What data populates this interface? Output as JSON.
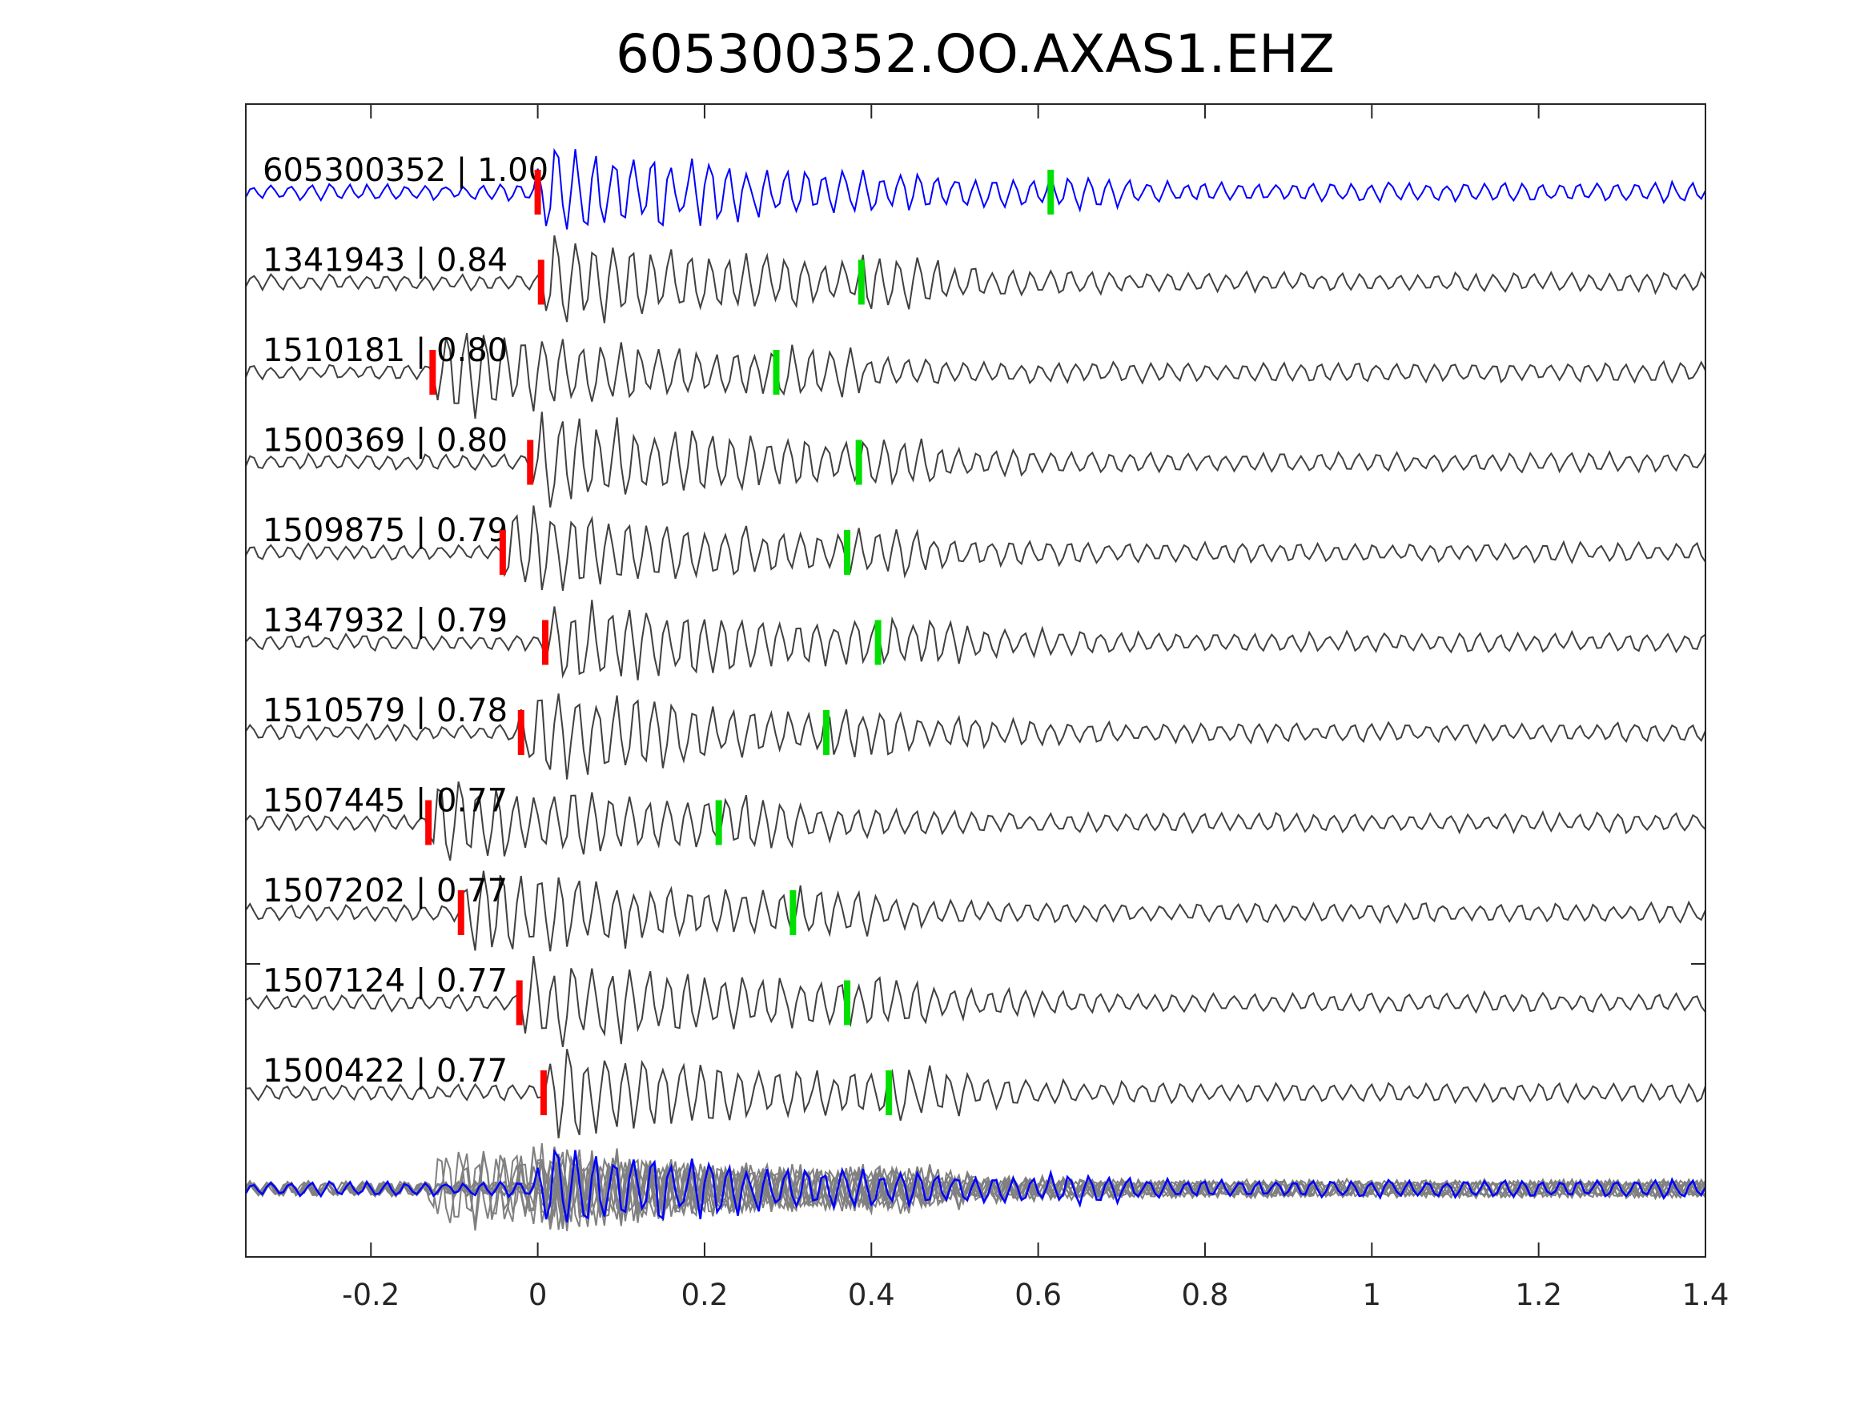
{
  "chart_data": {
    "type": "line",
    "title": "605300352.OO.AXAS1.EHZ",
    "xlabel": "",
    "ylabel": "",
    "xlim": [
      -0.35,
      1.4
    ],
    "xticks": [
      -0.2,
      0,
      0.2,
      0.4,
      0.6,
      0.8,
      1,
      1.2,
      1.4
    ],
    "xtick_labels": [
      "-0.2",
      "0",
      "0.2",
      "0.4",
      "0.6",
      "0.8",
      "1",
      "1.2",
      "1.4"
    ],
    "grid": false,
    "colors": {
      "template": "#0000ff",
      "trace": "#404040",
      "stack": "#808080",
      "p_pick": "#ff0000",
      "s_pick": "#00e000",
      "axis": "#262626"
    },
    "series": [
      {
        "id": "605300352",
        "cc": "1.00",
        "label": "605300352 | 1.00",
        "p_pick": 0.0,
        "s_pick": 0.615,
        "template": true
      },
      {
        "id": "1341943",
        "cc": "0.84",
        "label": "1341943 | 0.84",
        "p_pick": 0.004,
        "s_pick": 0.388
      },
      {
        "id": "1510181",
        "cc": "0.80",
        "label": "1510181 | 0.80",
        "p_pick": -0.126,
        "s_pick": 0.286
      },
      {
        "id": "1500369",
        "cc": "0.80",
        "label": "1500369 | 0.80",
        "p_pick": -0.009,
        "s_pick": 0.385
      },
      {
        "id": "1509875",
        "cc": "0.79",
        "label": "1509875 | 0.79",
        "p_pick": -0.042,
        "s_pick": 0.371
      },
      {
        "id": "1347932",
        "cc": "0.79",
        "label": "1347932 | 0.79",
        "p_pick": 0.009,
        "s_pick": 0.408
      },
      {
        "id": "1510579",
        "cc": "0.78",
        "label": "1510579 | 0.78",
        "p_pick": -0.02,
        "s_pick": 0.346
      },
      {
        "id": "1507445",
        "cc": "0.77",
        "label": "1507445 | 0.77",
        "p_pick": -0.131,
        "s_pick": 0.217
      },
      {
        "id": "1507202",
        "cc": "0.77",
        "label": "1507202 | 0.77",
        "p_pick": -0.092,
        "s_pick": 0.306
      },
      {
        "id": "1507124",
        "cc": "0.77",
        "label": "1507124 | 0.77",
        "p_pick": -0.022,
        "s_pick": 0.371
      },
      {
        "id": "1500422",
        "cc": "0.77",
        "label": "1500422 | 0.77",
        "p_pick": 0.007,
        "s_pick": 0.421
      }
    ],
    "stack": {
      "description": "aligned overlay of all traces"
    }
  }
}
